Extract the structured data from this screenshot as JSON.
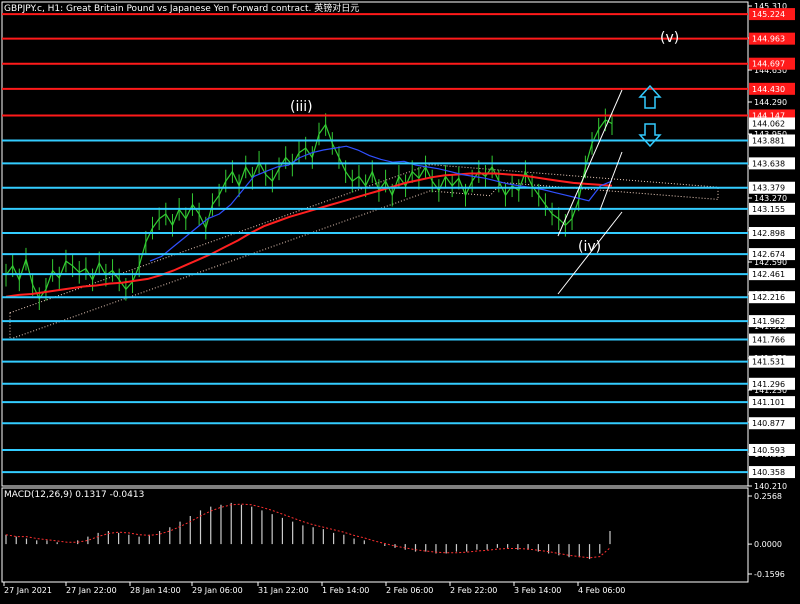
{
  "window": {
    "title": "GBPJPY.c, H1:  Great Britain Pound vs Japanese Yen Forward contract. 英镑对日元"
  },
  "macd": {
    "title": "MACD(12,26,9) 0.1317 -0.0413",
    "scale_labels": [
      "0.2568",
      "0.0000",
      "-0.1596"
    ]
  },
  "colors": {
    "background": "#000000",
    "price": "#33cc33",
    "red_levels": "#ff1a1a",
    "cyan_levels": "#33ccff",
    "axis": "#ffffff",
    "hist": "#cccccc",
    "signal": "#ff3030",
    "ma_red": "#ff2020",
    "ma_blue": "#3050ff",
    "dotted_cloud": "#f0d0c0",
    "arrows": "#33ccff"
  },
  "annotations": {
    "wave_iii": "(iii)",
    "wave_iv": "(iv)",
    "wave_v": "(v)"
  },
  "chart_data": {
    "type": "line",
    "title": "GBPJPY.c, H1",
    "x_labels": [
      "27 Jan 2021",
      "27 Jan 22:00",
      "28 Jan 14:00",
      "29 Jan 06:00",
      "31 Jan 22:00",
      "1 Feb 14:00",
      "2 Feb 06:00",
      "2 Feb 22:00",
      "3 Feb 14:00",
      "4 Feb 06:00"
    ],
    "y_axis_labels": [
      "145.310",
      "144.970",
      "144.630",
      "144.290",
      "143.950",
      "143.610",
      "143.270",
      "142.930",
      "142.590",
      "142.250",
      "141.910",
      "141.570",
      "141.230",
      "140.890",
      "140.550",
      "140.210"
    ],
    "ylim": [
      140.21,
      145.31
    ],
    "red_levels": [
      145.224,
      144.963,
      144.697,
      144.43,
      144.147
    ],
    "cyan_levels": [
      143.881,
      143.638,
      143.379,
      143.155,
      142.898,
      142.674,
      142.461,
      142.216,
      141.962,
      141.766,
      141.531,
      141.296,
      141.101,
      140.877,
      140.593,
      140.358
    ],
    "current_price": "144.062",
    "price_series": [
      142.45,
      142.55,
      142.4,
      142.62,
      142.35,
      142.2,
      142.3,
      142.5,
      142.42,
      142.6,
      142.55,
      142.48,
      142.52,
      142.4,
      142.58,
      142.45,
      142.5,
      142.4,
      142.3,
      142.38,
      142.55,
      142.8,
      142.95,
      143.05,
      143.1,
      142.98,
      143.15,
      143.05,
      143.2,
      143.1,
      142.95,
      143.2,
      143.3,
      143.45,
      143.55,
      143.4,
      143.6,
      143.48,
      143.65,
      143.52,
      143.45,
      143.58,
      143.7,
      143.62,
      143.75,
      143.8,
      143.7,
      143.95,
      144.05,
      143.85,
      143.7,
      143.55,
      143.45,
      143.5,
      143.4,
      143.55,
      143.35,
      143.45,
      143.3,
      143.5,
      143.4,
      143.55,
      143.48,
      143.6,
      143.45,
      143.35,
      143.5,
      143.4,
      143.48,
      143.3,
      143.45,
      143.55,
      143.5,
      143.6,
      143.45,
      143.3,
      143.4,
      143.35,
      143.55,
      143.4,
      143.3,
      143.2,
      143.1,
      143.05,
      142.98,
      143.05,
      143.25,
      143.6,
      143.85,
      144.0,
      144.1,
      144.06
    ],
    "ma_red": [
      142.22,
      142.24,
      142.25,
      142.27,
      142.29,
      142.31,
      142.33,
      142.34,
      142.36,
      142.37,
      142.39,
      142.41,
      142.45,
      142.5,
      142.56,
      142.62,
      142.68,
      142.75,
      142.82,
      142.9,
      142.97,
      143.02,
      143.07,
      143.11,
      143.15,
      143.19,
      143.23,
      143.27,
      143.31,
      143.35,
      143.39,
      143.43,
      143.46,
      143.49,
      143.51,
      143.52,
      143.53,
      143.53,
      143.53,
      143.52,
      143.51,
      143.49,
      143.47,
      143.45,
      143.43,
      143.42,
      143.41,
      143.4
    ],
    "ma_blue": [
      142.6,
      142.65,
      142.75,
      142.85,
      142.95,
      143.05,
      143.1,
      143.2,
      143.35,
      143.5,
      143.55,
      143.6,
      143.62,
      143.7,
      143.75,
      143.78,
      143.8,
      143.82,
      143.78,
      143.72,
      143.68,
      143.65,
      143.66,
      143.62,
      143.6,
      143.58,
      143.55,
      143.52,
      143.5,
      143.48,
      143.45,
      143.42,
      143.4,
      143.38,
      143.36,
      143.33,
      143.3,
      143.27,
      143.24,
      143.4,
      143.45
    ],
    "macd_hist": [
      0.05,
      0.04,
      0.03,
      0.02,
      0.02,
      0.01,
      0.0,
      0.02,
      0.04,
      0.06,
      0.07,
      0.06,
      0.05,
      0.04,
      0.05,
      0.07,
      0.09,
      0.12,
      0.15,
      0.18,
      0.2,
      0.21,
      0.22,
      0.21,
      0.2,
      0.18,
      0.16,
      0.14,
      0.12,
      0.1,
      0.09,
      0.08,
      0.06,
      0.05,
      0.03,
      0.02,
      0.0,
      -0.01,
      -0.02,
      -0.03,
      -0.04,
      -0.04,
      -0.05,
      -0.05,
      -0.04,
      -0.04,
      -0.03,
      -0.03,
      -0.02,
      -0.02,
      -0.03,
      -0.03,
      -0.04,
      -0.05,
      -0.06,
      -0.07,
      -0.07,
      -0.08,
      -0.05,
      0.07
    ]
  }
}
